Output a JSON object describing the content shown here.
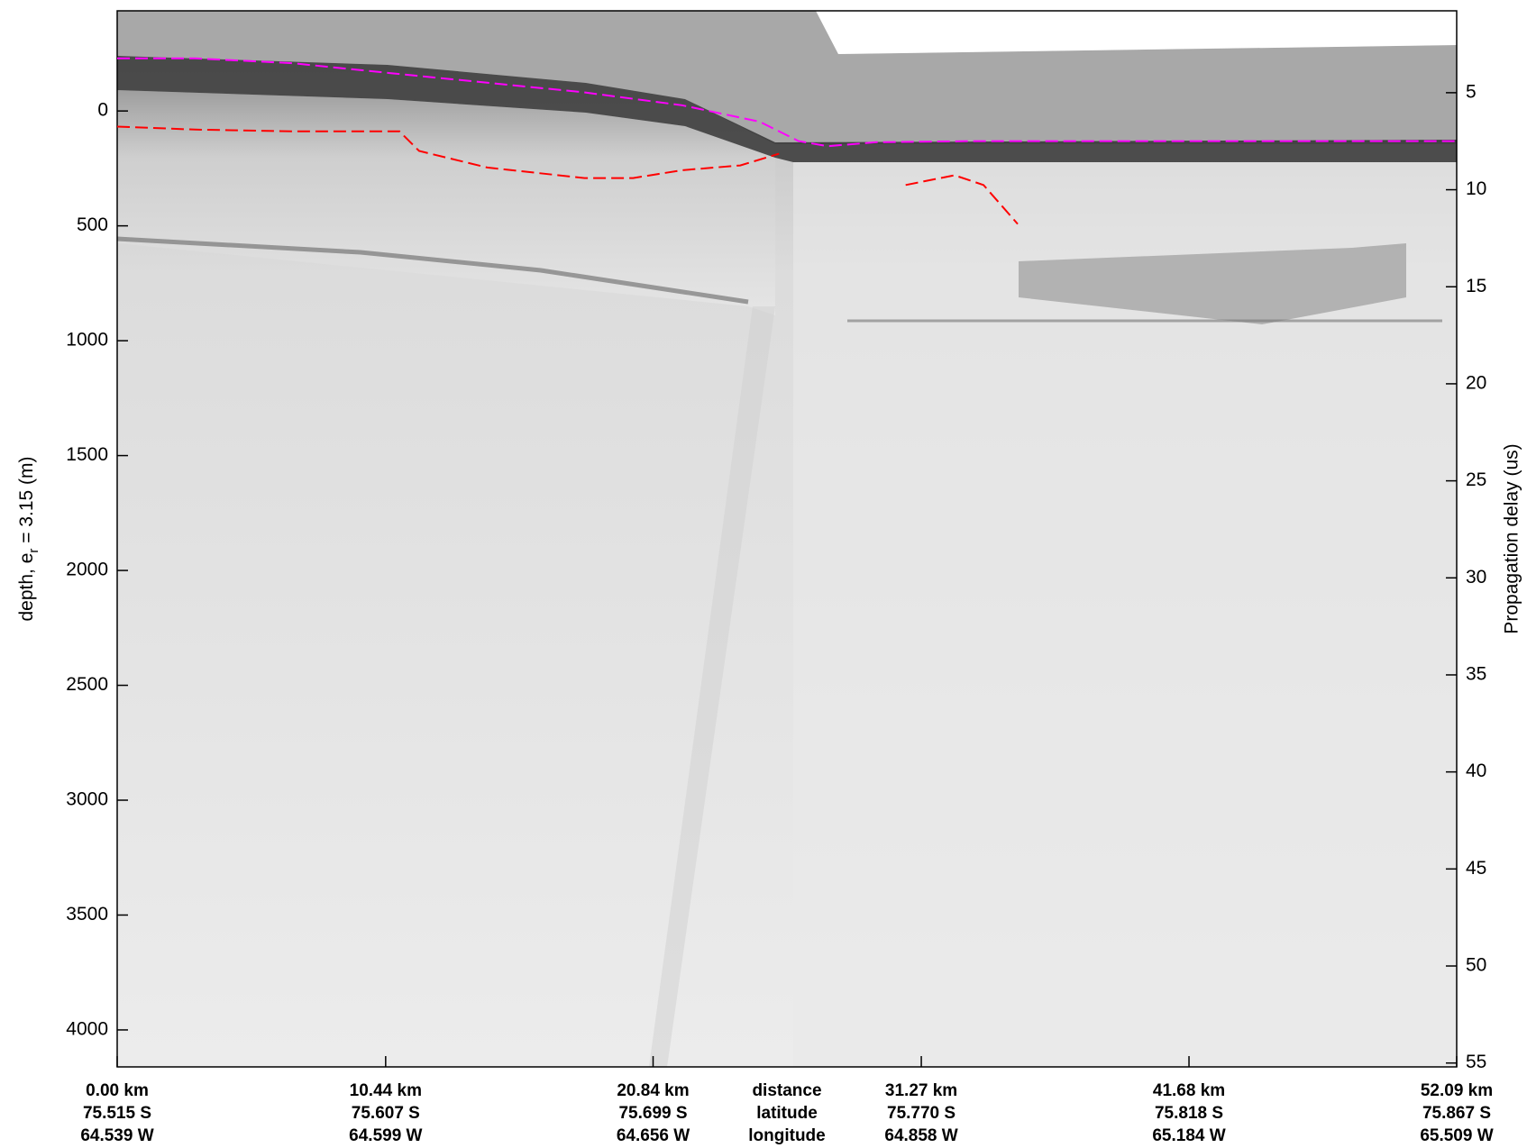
{
  "chart_data": {
    "type": "line",
    "ylabel_parts": [
      "depth, e",
      "r",
      " = 3.15 (m)"
    ],
    "y2label": "Propagation delay (us)",
    "xlabels": [
      "distance",
      "latitude",
      "longitude"
    ],
    "xlim": [
      0,
      52.09
    ],
    "xticks": [
      {
        "value": 0,
        "label": "0.00 km"
      },
      {
        "value": 10.44,
        "label": "10.44 km"
      },
      {
        "value": 20.84,
        "label": "20.84 km"
      },
      {
        "value": 31.27,
        "label": "31.27 km"
      },
      {
        "value": 41.68,
        "label": "41.68 km"
      },
      {
        "value": 52.09,
        "label": "52.09 km"
      }
    ],
    "latitude": [
      "75.515 S",
      "75.607 S",
      "75.699 S",
      "75.770 S",
      "75.818 S",
      "75.867 S"
    ],
    "longitude": [
      "64.539 W",
      "64.599 W",
      "64.656 W",
      "64.858 W",
      "65.184 W",
      "65.509 W"
    ],
    "ylim": [
      -436,
      4161
    ],
    "yticks": [
      0,
      500,
      1000,
      1500,
      2000,
      2500,
      3000,
      3500,
      4000
    ],
    "y2lim": [
      0.78,
      55.2
    ],
    "y2ticks": [
      5,
      10,
      15,
      20,
      25,
      30,
      35,
      40,
      45,
      50,
      55
    ],
    "y_inverted": true,
    "series": [
      {
        "color": "#ff00ff",
        "x": [
          0,
          3.03,
          6.81,
          10.6,
          14.39,
          18.17,
          21.96,
          24.99,
          26.5,
          27.63,
          29.53,
          33.31,
          40.88,
          52.09
        ],
        "values": [
          -229,
          -229,
          -208,
          -165,
          -123,
          -81,
          -25,
          47,
          131,
          153,
          136,
          131,
          131,
          131
        ]
      },
      {
        "color": "#ff0000",
        "x": [
          0,
          3.03,
          6.81,
          10.98,
          11.74,
          14.39,
          18.17,
          20.06,
          21.96,
          24.23,
          25.74,
          28.0,
          30.66,
          32.56,
          33.69,
          35.02
        ],
        "values": [
          68,
          81,
          89,
          89,
          174,
          246,
          292,
          292,
          258,
          237,
          186,
          null,
          322,
          280,
          322,
          492
        ]
      }
    ]
  }
}
